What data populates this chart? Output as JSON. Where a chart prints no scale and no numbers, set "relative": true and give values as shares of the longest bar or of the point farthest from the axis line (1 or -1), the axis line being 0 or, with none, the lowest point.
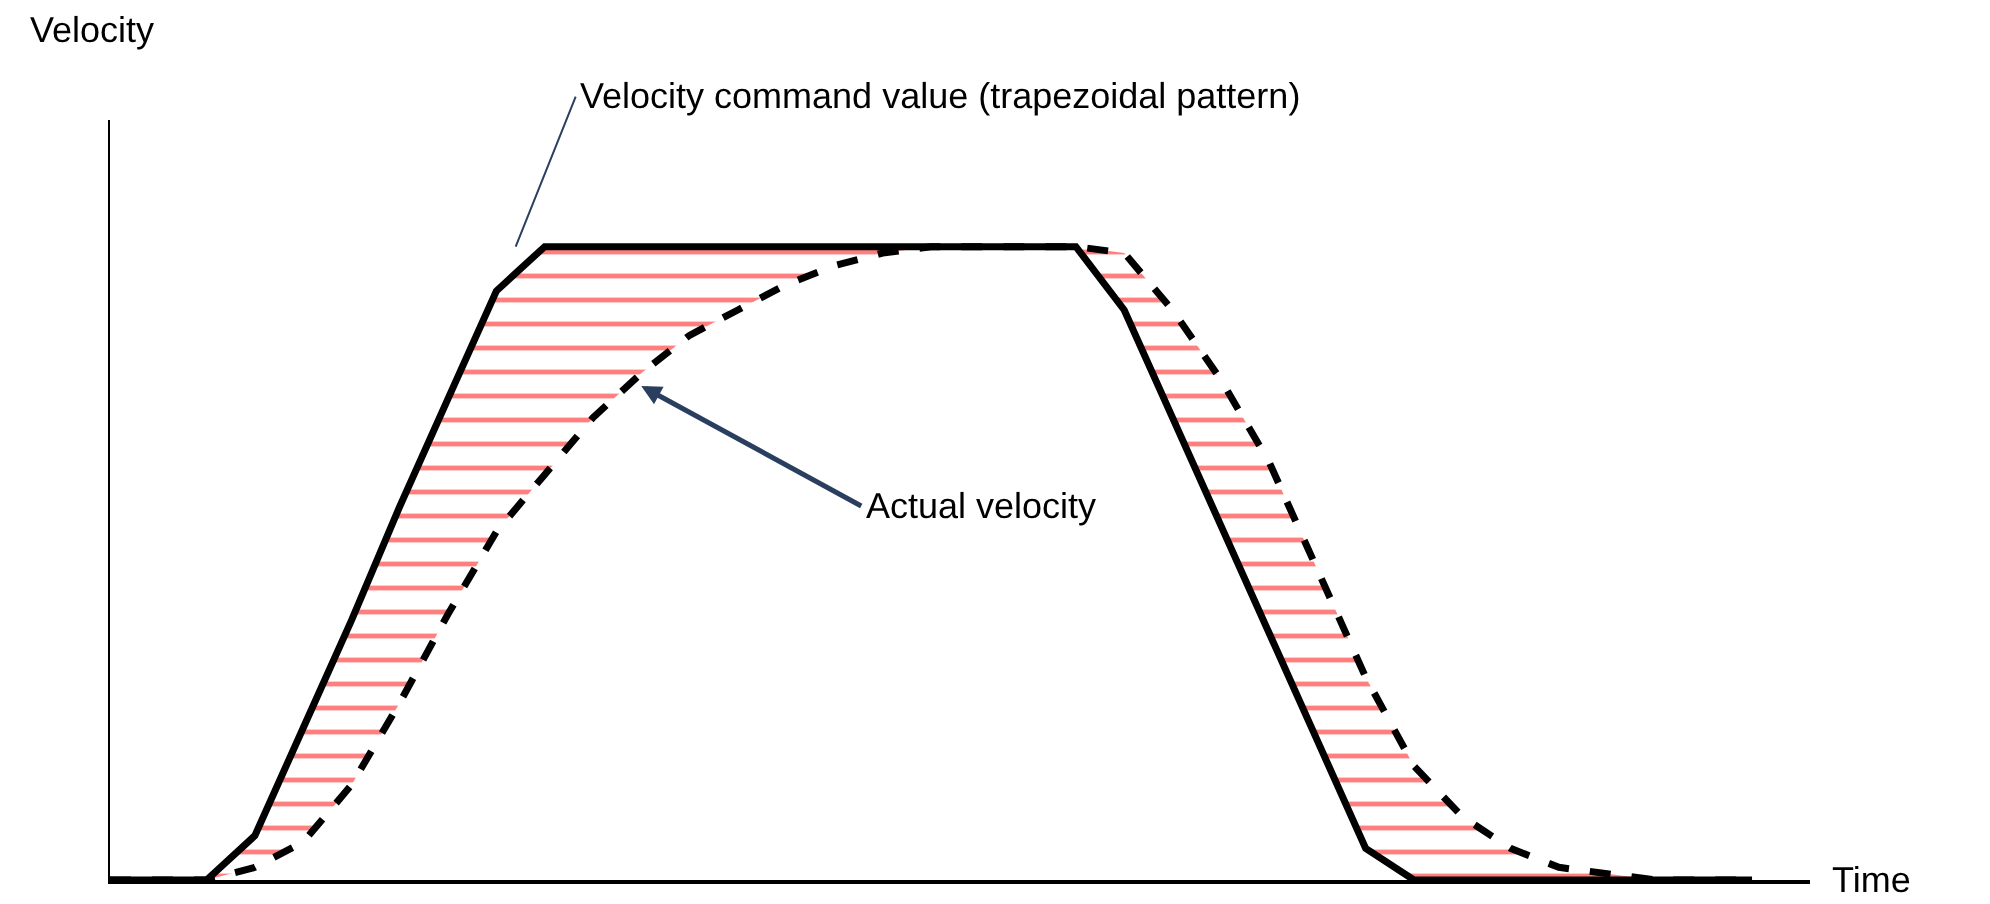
{
  "chart_data": {
    "type": "line",
    "relative": true,
    "xlabel": "Time",
    "categories": [
      null,
      null,
      null,
      null,
      null,
      null,
      null,
      null,
      null,
      null,
      null,
      null,
      null,
      null,
      null,
      null,
      null,
      null,
      null,
      null,
      null,
      null,
      null,
      null,
      null,
      null,
      null,
      null,
      null,
      null,
      null,
      null,
      null,
      null,
      null
    ],
    "series": [
      {
        "color": "#000000",
        "line_style": "solid",
        "values": [
          0,
          0,
          0,
          0.07,
          0.24,
          0.41,
          0.59,
          0.76,
          0.93,
          1,
          1,
          1,
          1,
          1,
          1,
          1,
          1,
          1,
          1,
          1,
          1,
          0.9,
          0.73,
          0.56,
          0.39,
          0.22,
          0.05,
          0,
          0,
          0,
          0,
          0,
          0,
          0,
          0
        ]
      },
      {
        "color": "#000000",
        "line_style": "dashed",
        "values": [
          0,
          0,
          0,
          0.02,
          0.06,
          0.15,
          0.28,
          0.42,
          0.55,
          0.64,
          0.73,
          0.8,
          0.86,
          0.9,
          0.94,
          0.97,
          0.99,
          1,
          1,
          1,
          1,
          0.99,
          0.9,
          0.79,
          0.66,
          0.49,
          0.32,
          0.18,
          0.1,
          0.05,
          0.02,
          0.01,
          0,
          0,
          0
        ],
        "lower": [
          0,
          0,
          0,
          0.02,
          0.06,
          0.15,
          0.28,
          0.42,
          0.55,
          0.64,
          0.73,
          0.8,
          0.86,
          0.9,
          0.94,
          0.97,
          0.99,
          1,
          1,
          1,
          1,
          0.9,
          0.73,
          0.56,
          0.39,
          0.22,
          0.05,
          0,
          0,
          0,
          0,
          0,
          0,
          0,
          0
        ],
        "upper": [
          0,
          0,
          0,
          0.07,
          0.24,
          0.41,
          0.59,
          0.76,
          0.93,
          1,
          1,
          1,
          1,
          1,
          1,
          1,
          1,
          1,
          1,
          1,
          1,
          0.99,
          0.9,
          0.79,
          0.66,
          0.49,
          0.32,
          0.18,
          0.1,
          0.05,
          0.02,
          0.01,
          0,
          0,
          0
        ]
      }
    ],
    "annotations": [
      "Velocity",
      "Velocity command value (trapezoidal pattern)",
      "Actual velocity"
    ],
    "marker": "none"
  }
}
